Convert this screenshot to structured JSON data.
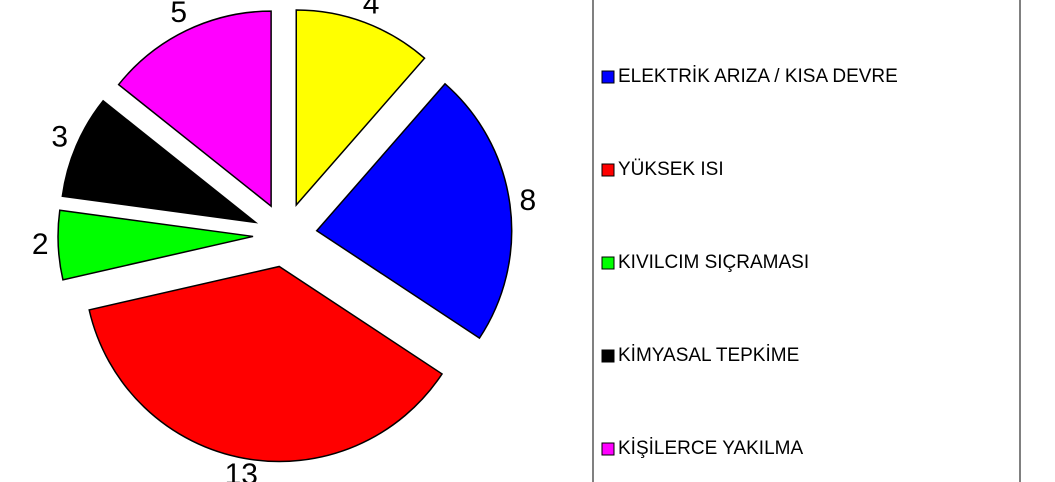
{
  "chart_data": {
    "type": "pie",
    "categories": [
      "ELEKTRİK ARIZA / KISA DEVRE",
      "YÜKSEK ISI",
      "KIVILCIM SIÇRAMASI",
      "KİMYASAL TEPKİME",
      "KİŞİLERCE YAKILMA",
      null
    ],
    "values": [
      8,
      13,
      2,
      3,
      5,
      4
    ],
    "colors": [
      "#0000ff",
      "#ff0000",
      "#00ff00",
      "#000000",
      "#ff00ff",
      "#ffff00"
    ],
    "legend": "right"
  }
}
